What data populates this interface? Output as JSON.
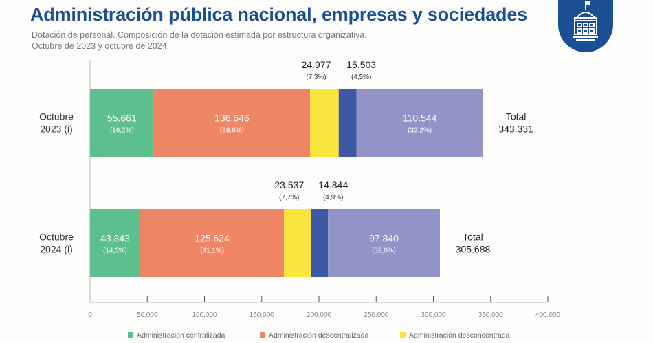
{
  "header": {
    "title": "Administración pública nacional, empresas y sociedades",
    "subtitle_line1": "Dotación de personal. Composición de la dotación estimada por estructura organizativa.",
    "subtitle_line2": "Octubre de 2023 y octubre de 2024.",
    "logo_icon": "government-building-icon"
  },
  "chart_data": {
    "type": "bar",
    "orientation": "horizontal-stacked",
    "categories": [
      "Octubre 2023 (i)",
      "Octubre 2024 (i)"
    ],
    "category_lines": [
      [
        "Octubre",
        "2023 (i)"
      ],
      [
        "Octubre",
        "2024 (i)"
      ]
    ],
    "series": [
      {
        "name": "Administración centralizada",
        "color": "#5dbf8e",
        "values": [
          55661,
          43843
        ],
        "labels": [
          "55.661",
          "43.843"
        ],
        "pct": [
          "(16,2%)",
          "(14,3%)"
        ]
      },
      {
        "name": "Administración descentralizada",
        "color": "#ee8666",
        "values": [
          136646,
          125624
        ],
        "labels": [
          "136.646",
          "125.624"
        ],
        "pct": [
          "(39,8%)",
          "(41,1%)"
        ]
      },
      {
        "name": "Administración desconcentrada",
        "color": "#f8e43c",
        "values": [
          24977,
          23537
        ],
        "labels": [
          "24.977",
          "23.537"
        ],
        "pct": [
          "(7,3%)",
          "(7,7%)"
        ]
      },
      {
        "color": "#3e58a6",
        "values": [
          15503,
          14844
        ],
        "labels": [
          "15.503",
          "14.844"
        ],
        "pct": [
          "(4,5%)",
          "(4,9%)"
        ]
      },
      {
        "color": "#9294c8",
        "values": [
          110544,
          97840
        ],
        "labels": [
          "110.544",
          "97.840"
        ],
        "pct": [
          "(32,2%)",
          "(32,0%)"
        ]
      }
    ],
    "totals": {
      "label": "Total",
      "values": [
        "343.331",
        "305.688"
      ]
    },
    "xlim": [
      0,
      400000
    ],
    "xticks": [
      0,
      50000,
      100000,
      150000,
      200000,
      250000,
      300000,
      350000,
      400000
    ],
    "xtick_labels": [
      "0",
      "50.000",
      "100.000",
      "150.000",
      "200.000",
      "250.000",
      "300.000",
      "350.000",
      "400.000"
    ],
    "grid": false,
    "legend_position": "bottom",
    "legend_visible": [
      "Administración centralizada",
      "Administración descentralizada",
      "Administración desconcentrada"
    ]
  }
}
